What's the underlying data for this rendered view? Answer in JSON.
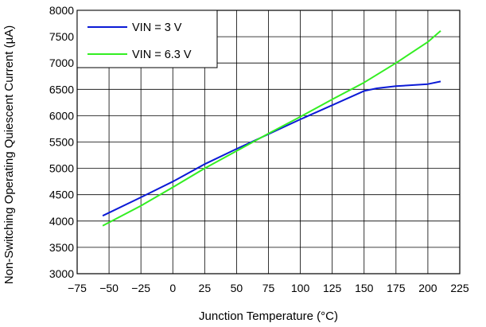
{
  "chart_data": {
    "type": "line",
    "title": "",
    "xlabel": "Junction Temperature (°C)",
    "ylabel": "Non-Switching Operating Quiescent Current (µA)",
    "xlim": [
      -75,
      225
    ],
    "ylim": [
      3000,
      8000
    ],
    "x_ticks": [
      -75,
      -50,
      -25,
      0,
      25,
      50,
      75,
      100,
      125,
      150,
      175,
      200,
      225
    ],
    "y_ticks": [
      3000,
      3500,
      4000,
      4500,
      5000,
      5500,
      6000,
      6500,
      7000,
      7500,
      8000
    ],
    "grid": true,
    "legend_position": "top-left",
    "series": [
      {
        "name": "VIN = 3 V",
        "color": "#0b1ad6",
        "x": [
          -55,
          -25,
          0,
          25,
          50,
          75,
          100,
          125,
          150,
          160,
          175,
          200,
          210
        ],
        "y": [
          4100,
          4450,
          4750,
          5080,
          5370,
          5650,
          5930,
          6200,
          6470,
          6520,
          6560,
          6600,
          6650
        ]
      },
      {
        "name": "VIN = 6.3 V",
        "color": "#33ee22",
        "x": [
          -55,
          -25,
          0,
          25,
          50,
          75,
          100,
          125,
          150,
          175,
          200,
          210
        ],
        "y": [
          3910,
          4290,
          4640,
          5000,
          5330,
          5660,
          5980,
          6310,
          6630,
          7000,
          7400,
          7610
        ]
      }
    ]
  }
}
